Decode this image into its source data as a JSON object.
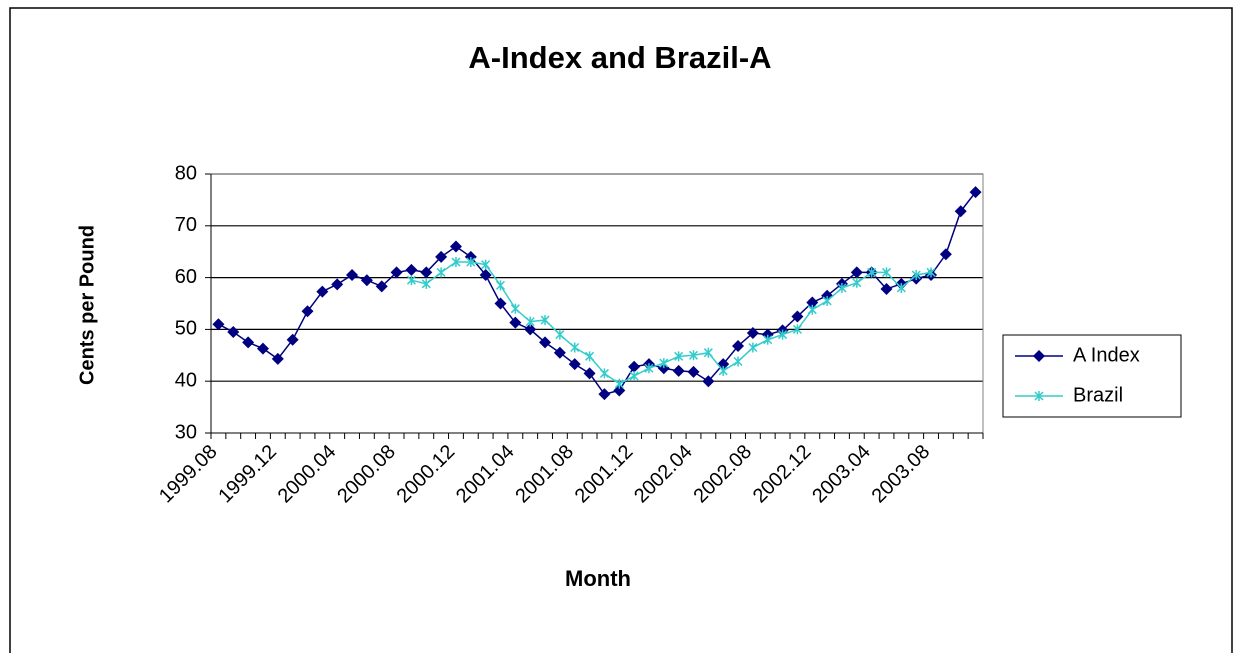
{
  "chart_data": {
    "type": "line",
    "title": "A-Index and Brazil-A",
    "x_label": "Month",
    "y_label": "Cents per Pound",
    "categories": [
      "1999.08",
      null,
      null,
      null,
      "1999.12",
      null,
      null,
      null,
      "2000.04",
      null,
      null,
      null,
      "2000.08",
      null,
      null,
      null,
      "2000.12",
      null,
      null,
      null,
      "2001.04",
      null,
      null,
      null,
      "2001.08",
      null,
      null,
      null,
      "2001.12",
      null,
      null,
      null,
      "2002.04",
      null,
      null,
      null,
      "2002.08",
      null,
      null,
      null,
      "2002.12",
      null,
      null,
      null,
      "2003.04",
      null,
      null,
      null,
      "2003.08",
      null,
      null,
      null
    ],
    "series": [
      {
        "name": "A Index",
        "color": "#000080",
        "marker": "diamond",
        "values": [
          51,
          49.5,
          47.5,
          46.3,
          44.3,
          48,
          53.5,
          57.3,
          58.7,
          60.5,
          59.5,
          58.3,
          61,
          61.5,
          61,
          64,
          66,
          64,
          60.5,
          55,
          51.3,
          50,
          47.5,
          45.5,
          43.3,
          41.5,
          37.5,
          38.2,
          42.8,
          43.3,
          42.5,
          42,
          41.8,
          40,
          43.3,
          46.8,
          49.3,
          49,
          49.8,
          52.5,
          55.2,
          56.5,
          58.8,
          61,
          61,
          57.8,
          58.8,
          59.8,
          60.5,
          64.5,
          72.8,
          76.5
        ]
      },
      {
        "name": "Brazil",
        "color": "#33cccc",
        "marker": "x",
        "values": [
          null,
          null,
          null,
          null,
          null,
          null,
          null,
          null,
          null,
          null,
          null,
          null,
          null,
          59.5,
          58.8,
          61,
          63,
          63,
          62.5,
          58.5,
          54,
          51.5,
          51.8,
          49,
          46.5,
          44.8,
          41.5,
          39.5,
          41,
          42.5,
          43.5,
          44.8,
          45,
          45.5,
          42,
          43.8,
          46.5,
          48,
          49,
          50,
          53.8,
          55.5,
          58,
          59,
          61,
          61,
          58,
          60.5,
          61,
          null,
          null,
          null
        ]
      }
    ],
    "ylim": [
      30,
      80
    ],
    "yticks": [
      30,
      40,
      50,
      60,
      70,
      80
    ],
    "grid": true,
    "legend": "right"
  }
}
